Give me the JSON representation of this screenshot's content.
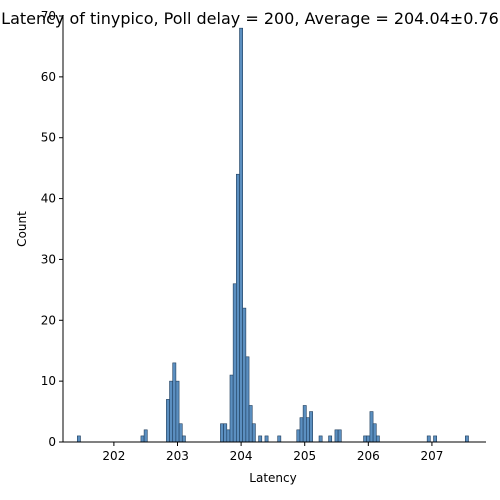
{
  "chart_data": {
    "type": "bar",
    "title": "Latency of tinypico, Poll delay = 200, Average = 204.04±0.76",
    "xlabel": "Latency",
    "ylabel": "Count",
    "xlim": [
      201.2,
      207.85
    ],
    "ylim": [
      0,
      70
    ],
    "xticks": [
      202,
      203,
      204,
      205,
      206,
      207
    ],
    "yticks": [
      0,
      10,
      20,
      30,
      40,
      50,
      60,
      70
    ],
    "bin_width": 0.05,
    "bins": [
      {
        "x": 201.45,
        "count": 1
      },
      {
        "x": 202.45,
        "count": 1
      },
      {
        "x": 202.5,
        "count": 2
      },
      {
        "x": 202.85,
        "count": 7
      },
      {
        "x": 202.9,
        "count": 10
      },
      {
        "x": 202.95,
        "count": 13
      },
      {
        "x": 203.0,
        "count": 10
      },
      {
        "x": 203.05,
        "count": 3
      },
      {
        "x": 203.1,
        "count": 1
      },
      {
        "x": 203.7,
        "count": 3
      },
      {
        "x": 203.75,
        "count": 3
      },
      {
        "x": 203.8,
        "count": 2
      },
      {
        "x": 203.85,
        "count": 11
      },
      {
        "x": 203.9,
        "count": 26
      },
      {
        "x": 203.95,
        "count": 44
      },
      {
        "x": 204.0,
        "count": 68
      },
      {
        "x": 204.05,
        "count": 22
      },
      {
        "x": 204.1,
        "count": 14
      },
      {
        "x": 204.15,
        "count": 6
      },
      {
        "x": 204.2,
        "count": 3
      },
      {
        "x": 204.3,
        "count": 1
      },
      {
        "x": 204.4,
        "count": 1
      },
      {
        "x": 204.6,
        "count": 1
      },
      {
        "x": 204.9,
        "count": 2
      },
      {
        "x": 204.95,
        "count": 4
      },
      {
        "x": 205.0,
        "count": 6
      },
      {
        "x": 205.05,
        "count": 4
      },
      {
        "x": 205.1,
        "count": 5
      },
      {
        "x": 205.25,
        "count": 1
      },
      {
        "x": 205.4,
        "count": 1
      },
      {
        "x": 205.5,
        "count": 2
      },
      {
        "x": 205.55,
        "count": 2
      },
      {
        "x": 205.95,
        "count": 1
      },
      {
        "x": 206.0,
        "count": 1
      },
      {
        "x": 206.05,
        "count": 5
      },
      {
        "x": 206.1,
        "count": 3
      },
      {
        "x": 206.15,
        "count": 1
      },
      {
        "x": 206.95,
        "count": 1
      },
      {
        "x": 207.05,
        "count": 1
      },
      {
        "x": 207.55,
        "count": 1
      }
    ],
    "grid": false,
    "bar_color": "#5b8fc0",
    "edge_color": "#1f3d5c"
  }
}
